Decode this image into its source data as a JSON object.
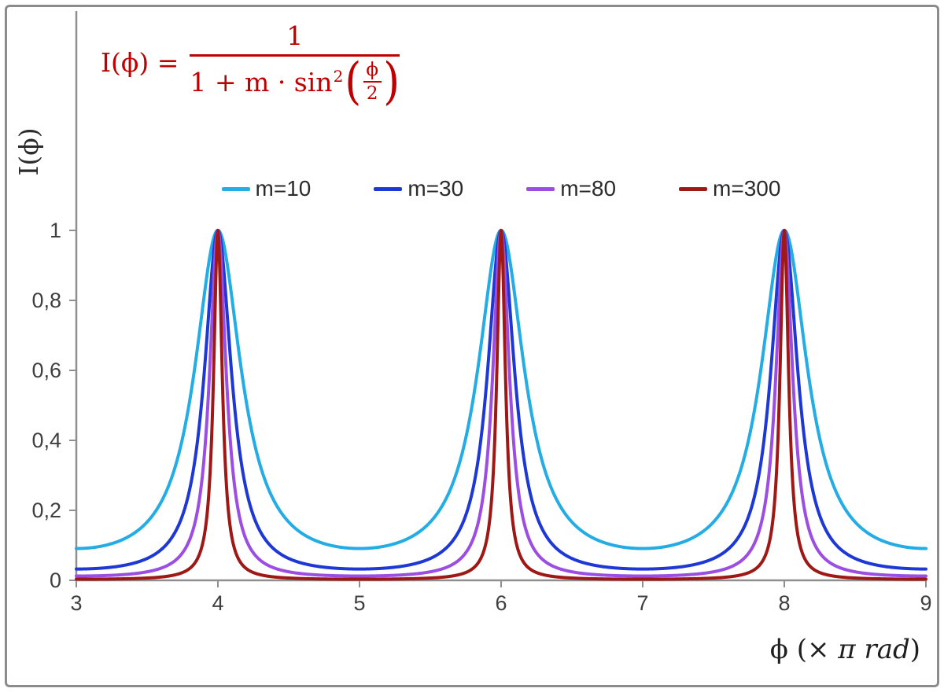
{
  "chart_data": {
    "type": "line",
    "title": "",
    "formula": {
      "plain": "I(ϕ) = 1 / (1 + m·sin²(ϕ/2))",
      "lhs": "I(ϕ) =",
      "numerator": "1",
      "denom_prefix": "1 + m · sin",
      "denom_sup": "2",
      "lparen": "(",
      "rparen": ")",
      "inner_numerator": "ϕ",
      "inner_denominator": "2",
      "color": "#C00000"
    },
    "ylabel": "I(ϕ)",
    "xlabel": {
      "prefix": "ϕ  (×",
      "italic": " π rad",
      "suffix": ")"
    },
    "xlim": [
      3,
      9
    ],
    "ylim": [
      0,
      1
    ],
    "grid": false,
    "x_sample_step": 0.005,
    "function_note": "I = 1 / (1 + m * sin^2(x*pi/2)) with x measured in units of pi rad",
    "peaks_at_x": [
      4,
      6,
      8
    ],
    "x_ticks": [
      {
        "v": 3,
        "label": "3"
      },
      {
        "v": 4,
        "label": "4"
      },
      {
        "v": 5,
        "label": "5"
      },
      {
        "v": 6,
        "label": "6"
      },
      {
        "v": 7,
        "label": "7"
      },
      {
        "v": 8,
        "label": "8"
      },
      {
        "v": 9,
        "label": "9"
      }
    ],
    "y_ticks": [
      {
        "v": 0,
        "label": "0"
      },
      {
        "v": 0.2,
        "label": "0,2"
      },
      {
        "v": 0.4,
        "label": "0,4"
      },
      {
        "v": 0.6,
        "label": "0,6"
      },
      {
        "v": 0.8,
        "label": "0,8"
      },
      {
        "v": 1,
        "label": "1"
      }
    ],
    "series": [
      {
        "name": "m=10",
        "m": 10,
        "color": "#24ACE4"
      },
      {
        "name": "m=30",
        "m": 30,
        "color": "#1E38D6"
      },
      {
        "name": "m=80",
        "m": 80,
        "color": "#9D4EE2"
      },
      {
        "name": "m=300",
        "m": 300,
        "color": "#9E1915"
      }
    ],
    "legend_position": "top-center",
    "axis_color": "#8F8F8F",
    "tick_label_color": "#3F3F3F",
    "line_width": 4
  }
}
